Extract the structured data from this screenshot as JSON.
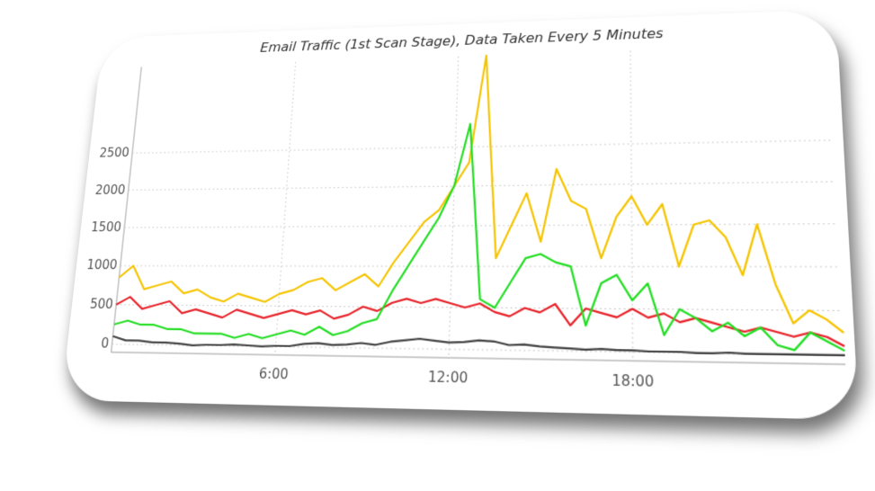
{
  "chart_data": {
    "type": "line",
    "title": "Email Traffic (1st Scan Stage), Data Taken Every 5 Minutes",
    "x": [
      0,
      0.5,
      1,
      1.5,
      2,
      2.5,
      3,
      3.5,
      4,
      4.5,
      5,
      5.5,
      6,
      6.5,
      7,
      7.5,
      8,
      8.5,
      9,
      9.5,
      10,
      10.5,
      11,
      11.5,
      12,
      12.5,
      13,
      13.5,
      14,
      14.5,
      15,
      15.5,
      16,
      16.5,
      17,
      17.5,
      18,
      18.5,
      19,
      19.5,
      20,
      20.5,
      21,
      21.5,
      22,
      22.5,
      23,
      23.5,
      24,
      24.5
    ],
    "series": [
      {
        "color": "#f5c400",
        "values": [
          850,
          1000,
          700,
          750,
          800,
          650,
          700,
          600,
          550,
          650,
          600,
          550,
          650,
          700,
          800,
          850,
          700,
          800,
          900,
          750,
          1050,
          1300,
          1550,
          1700,
          2000,
          2300,
          3700,
          1100,
          1500,
          1900,
          1300,
          2200,
          1800,
          1700,
          1100,
          1600,
          1850,
          1500,
          1750,
          1000,
          1500,
          1550,
          1350,
          900,
          1500,
          800,
          350,
          500,
          400,
          250
        ]
      },
      {
        "color": "#e8232a",
        "values": [
          500,
          600,
          450,
          500,
          550,
          400,
          450,
          400,
          350,
          450,
          400,
          350,
          400,
          450,
          400,
          450,
          350,
          400,
          500,
          450,
          550,
          600,
          550,
          600,
          550,
          500,
          550,
          450,
          400,
          500,
          450,
          550,
          300,
          500,
          450,
          400,
          500,
          400,
          450,
          350,
          400,
          350,
          300,
          250,
          300,
          250,
          200,
          250,
          200,
          100
        ]
      },
      {
        "color": "#22dd22",
        "values": [
          250,
          300,
          250,
          250,
          200,
          200,
          150,
          150,
          150,
          100,
          150,
          100,
          150,
          200,
          150,
          250,
          150,
          200,
          300,
          350,
          700,
          1000,
          1300,
          1600,
          2000,
          2800,
          600,
          500,
          800,
          1100,
          1150,
          1050,
          1000,
          300,
          800,
          900,
          600,
          800,
          200,
          500,
          400,
          250,
          350,
          200,
          300,
          100,
          50,
          250,
          150,
          50
        ]
      },
      {
        "color": "#444444",
        "values": [
          100,
          50,
          50,
          30,
          30,
          20,
          0,
          10,
          10,
          20,
          10,
          0,
          10,
          10,
          40,
          50,
          30,
          40,
          60,
          40,
          80,
          100,
          120,
          100,
          80,
          90,
          110,
          100,
          60,
          70,
          50,
          40,
          30,
          20,
          30,
          20,
          20,
          10,
          10,
          10,
          0,
          0,
          10,
          0,
          0,
          0,
          0,
          0,
          0,
          0
        ]
      }
    ],
    "xlim": [
      0,
      24.5
    ],
    "ylim": [
      -100,
      3700
    ],
    "xticks": [
      {
        "value": 6,
        "label": "6:00"
      },
      {
        "value": 12,
        "label": "12:00"
      },
      {
        "value": 18,
        "label": "18:00"
      }
    ],
    "yticks": [
      0,
      500,
      1000,
      1500,
      2000,
      2500
    ],
    "grid": true
  }
}
